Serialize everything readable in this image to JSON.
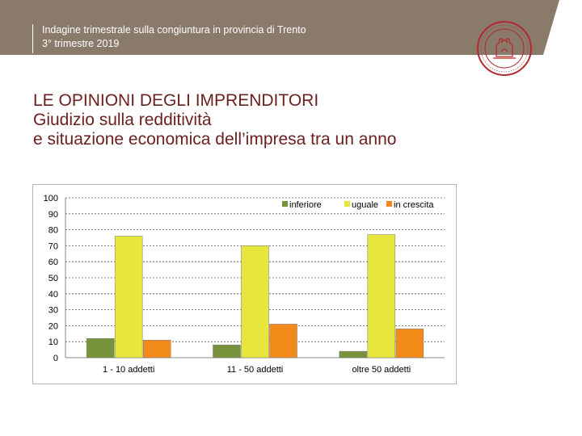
{
  "header": {
    "line1": "Indagine trimestrale sulla congiuntura in provincia di Trento",
    "line2": "3° trimestre 2019",
    "logo_icon": "chamber-of-commerce-seal-icon",
    "logo_color": "#b3282d"
  },
  "title": {
    "line1": "LE OPINIONI DEGLI IMPRENDITORI",
    "line2": "Giudizio sulla redditività",
    "line3": "e situazione economica dell’impresa tra un anno"
  },
  "chart_data": {
    "type": "bar",
    "title": "",
    "xlabel": "",
    "ylabel": "",
    "categories": [
      "1 - 10 addetti",
      "11 - 50 addetti",
      "oltre 50 addetti"
    ],
    "series": [
      {
        "name": "inferiore",
        "color": "#77933c",
        "values": [
          12,
          8,
          4
        ]
      },
      {
        "name": "uguale",
        "color": "#e6e63c",
        "values": [
          76,
          70,
          77
        ]
      },
      {
        "name": "in crescita",
        "color": "#f28a1a",
        "values": [
          11,
          21,
          18
        ]
      }
    ],
    "ylim": [
      0,
      100
    ],
    "yticks": [
      0,
      10,
      20,
      30,
      40,
      50,
      60,
      70,
      80,
      90,
      100
    ],
    "grid": true,
    "legend_position": "top-right"
  }
}
